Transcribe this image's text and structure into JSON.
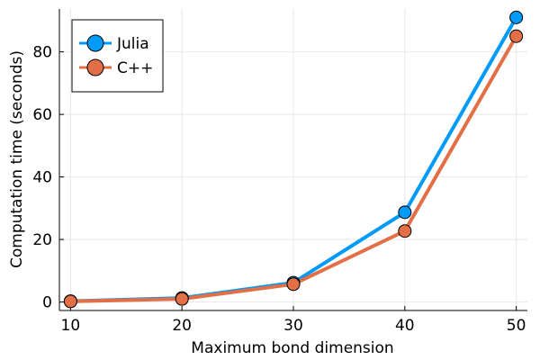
{
  "chart_data": {
    "type": "line",
    "title": "",
    "xlabel": "Maximum bond dimension",
    "ylabel": "Computation time (seconds)",
    "x": [
      10,
      20,
      30,
      40,
      50
    ],
    "xticks": [
      10,
      20,
      30,
      40,
      50
    ],
    "yticks": [
      0,
      20,
      40,
      60,
      80
    ],
    "xlim": [
      9,
      51
    ],
    "ylim": [
      -2.7,
      93.7
    ],
    "grid": true,
    "legend_position": "top-left",
    "series": [
      {
        "name": "Julia",
        "color": "#009af9",
        "values": [
          0.3,
          1.3,
          6.2,
          28.7,
          91.0
        ]
      },
      {
        "name": "C++",
        "color": "#e26f46",
        "values": [
          0.2,
          1.0,
          5.7,
          22.7,
          85.0
        ]
      }
    ]
  }
}
